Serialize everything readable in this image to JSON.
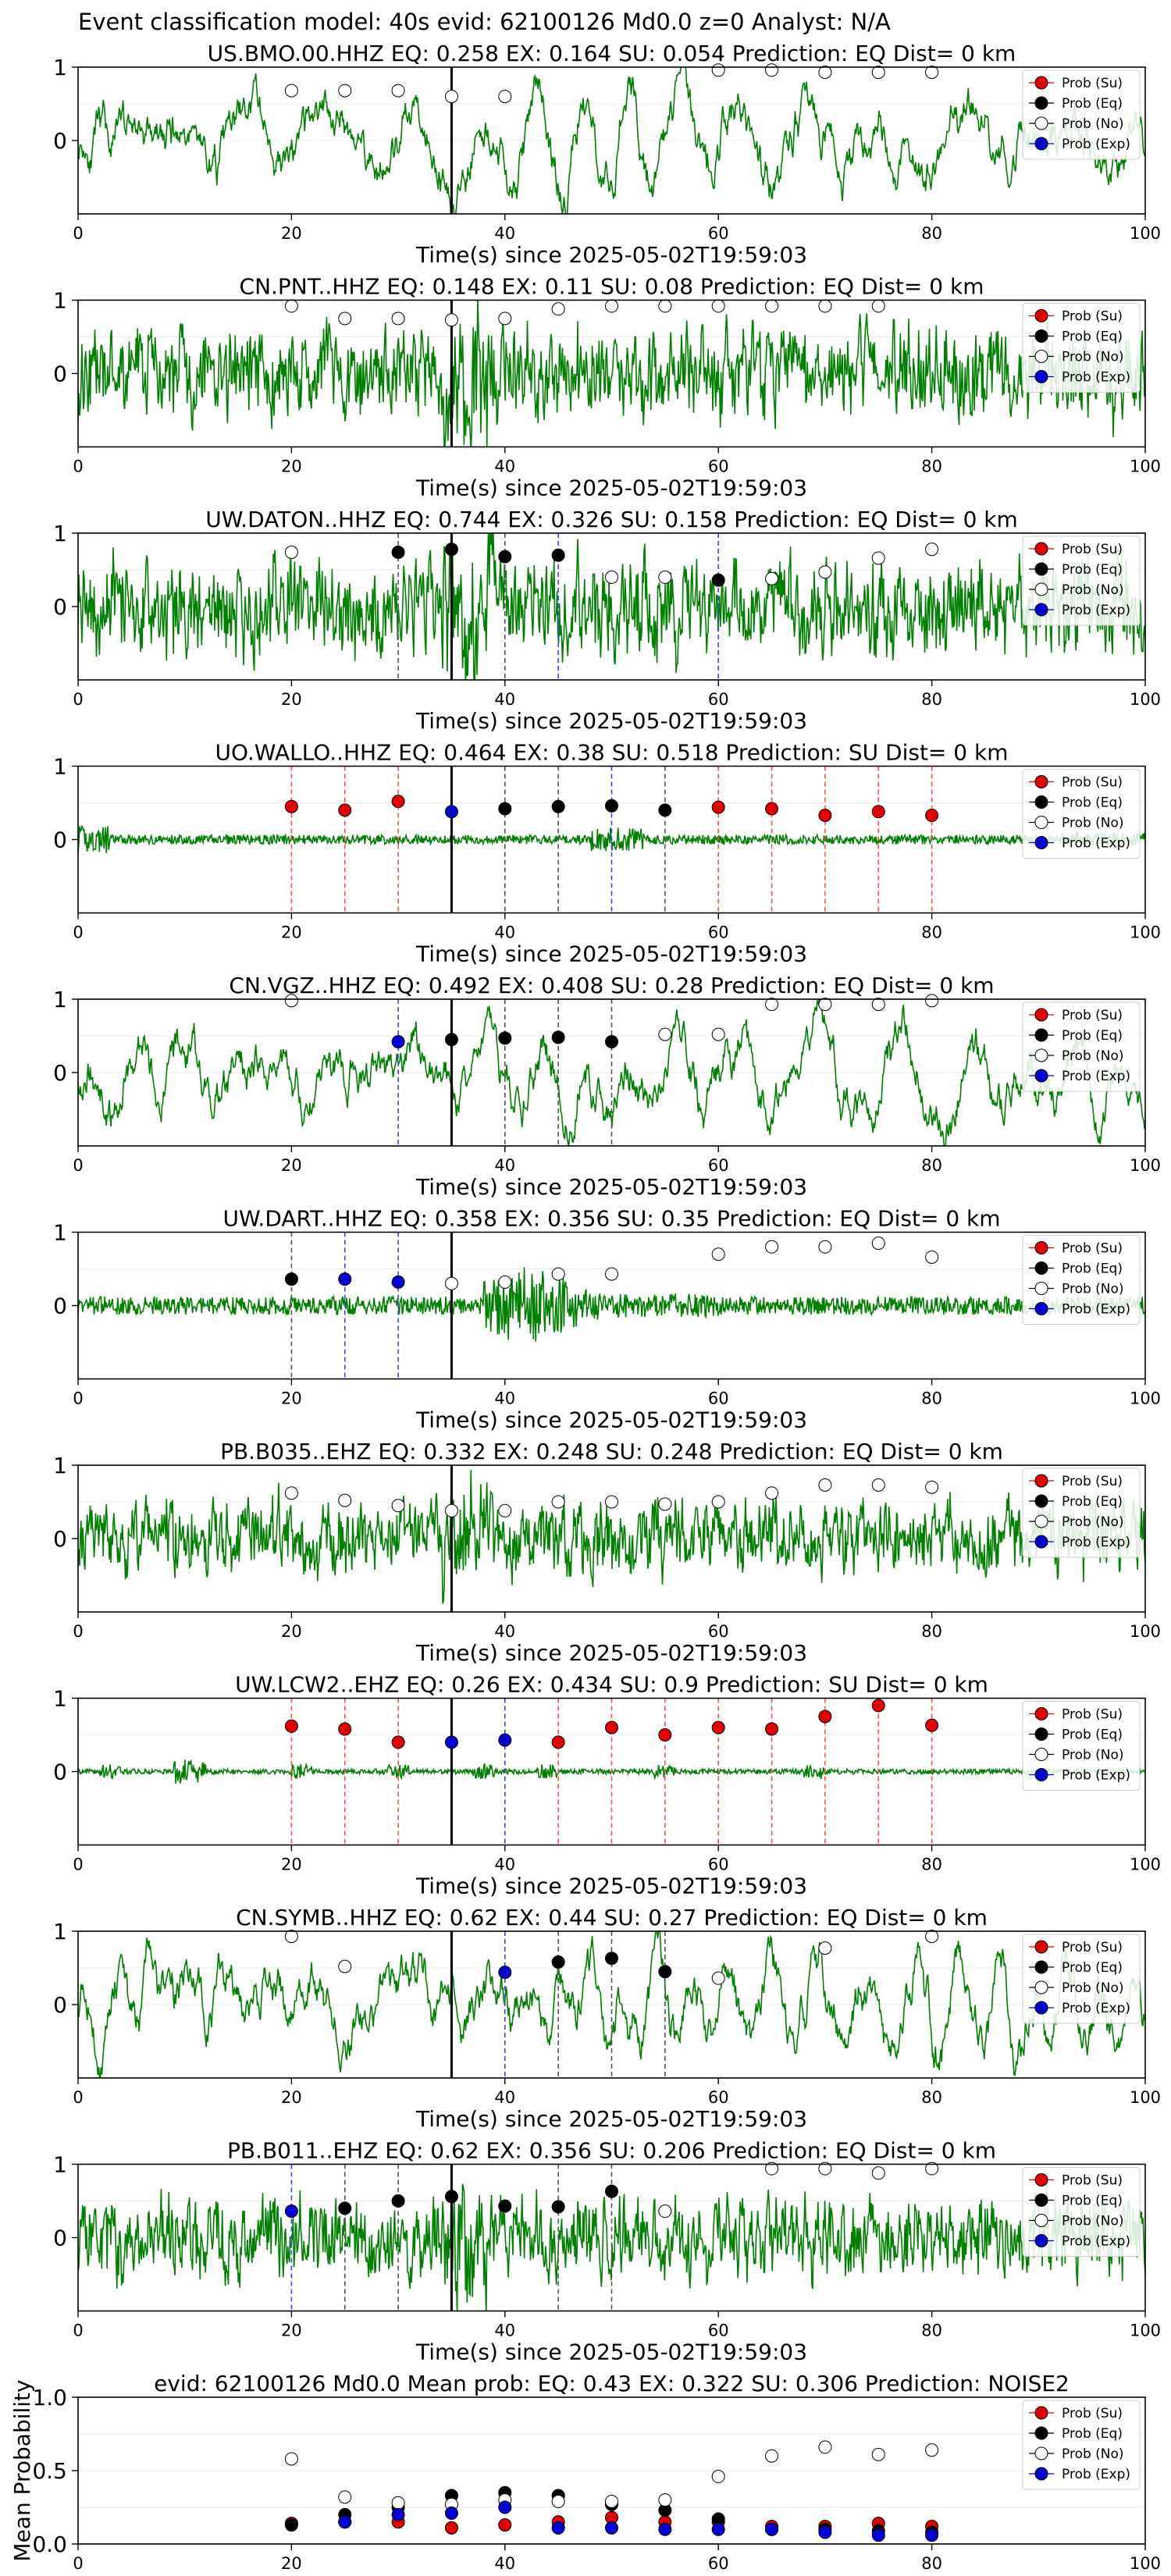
{
  "suptitle": "Event classification model: 40s evid: 62100126 Md0.0 z=0 Analyst: N/A",
  "xlabel": "Time(s) since 2025-05-02T19:59:03",
  "legend": [
    "Prob (Su)",
    "Prob (Eq)",
    "Prob (No)",
    "Prob (Exp)"
  ],
  "colors": {
    "su": "#e00000",
    "eq": "#000000",
    "no": "#ffffff",
    "exp": "#0000d0",
    "trace": "#008000"
  },
  "chart_data": [
    {
      "type": "line",
      "title": "US.BMO.00.HHZ   EQ: 0.258  EX: 0.164  SU: 0.054   Prediction: EQ    Dist= 0 km",
      "style": "lowfreq",
      "amp": 0.55,
      "seed": 11,
      "xlim": [
        0,
        100
      ],
      "ylim": [
        -1,
        1
      ],
      "yticks": [
        0,
        1
      ],
      "xticks": [
        0,
        20,
        40,
        60,
        80,
        100
      ],
      "pts": [
        [
          20,
          0.68,
          "no"
        ],
        [
          25,
          0.68,
          "no"
        ],
        [
          30,
          0.68,
          "no"
        ],
        [
          35,
          0.6,
          "no"
        ],
        [
          40,
          0.6,
          "no"
        ],
        [
          60,
          0.96,
          "no"
        ],
        [
          65,
          0.96,
          "no"
        ],
        [
          70,
          0.93,
          "no"
        ],
        [
          75,
          0.93,
          "no"
        ],
        [
          80,
          0.93,
          "no"
        ]
      ],
      "vlines": []
    },
    {
      "type": "line",
      "title": "CN.PNT..HHZ   EQ: 0.148  EX: 0.11  SU: 0.08   Prediction: EQ    Dist= 0 km",
      "style": "noise",
      "amp": 0.55,
      "seed": 23,
      "xlim": [
        0,
        100
      ],
      "ylim": [
        -1,
        1
      ],
      "yticks": [
        0,
        1
      ],
      "xticks": [
        0,
        20,
        40,
        60,
        80,
        100
      ],
      "pts": [
        [
          20,
          0.92,
          "no"
        ],
        [
          25,
          0.75,
          "no"
        ],
        [
          30,
          0.75,
          "no"
        ],
        [
          35,
          0.73,
          "no"
        ],
        [
          40,
          0.75,
          "no"
        ],
        [
          45,
          0.88,
          "no"
        ],
        [
          50,
          0.92,
          "no"
        ],
        [
          55,
          0.92,
          "no"
        ],
        [
          60,
          0.92,
          "no"
        ],
        [
          65,
          0.92,
          "no"
        ],
        [
          70,
          0.92,
          "no"
        ],
        [
          75,
          0.92,
          "no"
        ]
      ],
      "vlines": []
    },
    {
      "type": "line",
      "title": "UW.DATON..HHZ   EQ: 0.744  EX: 0.326  SU: 0.158   Prediction: EQ    Dist= 0 km",
      "style": "noise",
      "amp": 0.6,
      "seed": 37,
      "xlim": [
        0,
        100
      ],
      "ylim": [
        -1,
        1
      ],
      "yticks": [
        0,
        1
      ],
      "xticks": [
        0,
        20,
        40,
        60,
        80,
        100
      ],
      "pts": [
        [
          20,
          0.74,
          "no"
        ],
        [
          30,
          0.74,
          "eq"
        ],
        [
          35,
          0.78,
          "eq"
        ],
        [
          40,
          0.68,
          "eq"
        ],
        [
          45,
          0.7,
          "eq"
        ],
        [
          50,
          0.4,
          "no"
        ],
        [
          55,
          0.4,
          "no"
        ],
        [
          60,
          0.36,
          "eq"
        ],
        [
          65,
          0.38,
          "no"
        ],
        [
          70,
          0.47,
          "no"
        ],
        [
          75,
          0.66,
          "no"
        ],
        [
          80,
          0.78,
          "no"
        ]
      ],
      "vlines": [
        [
          30,
          "eq"
        ],
        [
          40,
          "eq"
        ],
        [
          45,
          "exp"
        ],
        [
          60,
          "exp"
        ]
      ]
    },
    {
      "type": "line",
      "title": "UO.WALLO..HHZ   EQ: 0.464  EX: 0.38  SU: 0.518   Prediction: SU    Dist= 0 km",
      "style": "quiet",
      "amp": 0.2,
      "seed": 41,
      "xlim": [
        0,
        100
      ],
      "ylim": [
        -1,
        1
      ],
      "yticks": [
        0,
        1
      ],
      "xticks": [
        0,
        20,
        40,
        60,
        80,
        100
      ],
      "pts": [
        [
          20,
          0.45,
          "su"
        ],
        [
          25,
          0.4,
          "su"
        ],
        [
          30,
          0.52,
          "su"
        ],
        [
          35,
          0.38,
          "exp"
        ],
        [
          40,
          0.42,
          "eq"
        ],
        [
          45,
          0.45,
          "eq"
        ],
        [
          50,
          0.46,
          "eq"
        ],
        [
          55,
          0.4,
          "eq"
        ],
        [
          60,
          0.44,
          "su"
        ],
        [
          65,
          0.42,
          "su"
        ],
        [
          70,
          0.33,
          "su"
        ],
        [
          75,
          0.38,
          "su"
        ],
        [
          80,
          0.33,
          "su"
        ]
      ],
      "vlines": [
        [
          20,
          "su"
        ],
        [
          25,
          "su"
        ],
        [
          30,
          "su"
        ],
        [
          40,
          "eq"
        ],
        [
          45,
          "eq"
        ],
        [
          50,
          "exp"
        ],
        [
          55,
          "eq"
        ],
        [
          60,
          "su"
        ],
        [
          65,
          "su"
        ],
        [
          70,
          "su"
        ],
        [
          75,
          "su"
        ],
        [
          80,
          "su"
        ]
      ]
    },
    {
      "type": "line",
      "title": "CN.VGZ..HHZ   EQ: 0.492  EX: 0.408  SU: 0.28   Prediction: EQ    Dist= 0 km",
      "style": "lowfreq",
      "amp": 0.6,
      "seed": 53,
      "xlim": [
        0,
        100
      ],
      "ylim": [
        -1,
        1
      ],
      "yticks": [
        0,
        1
      ],
      "xticks": [
        0,
        20,
        40,
        60,
        80,
        100
      ],
      "pts": [
        [
          20,
          0.98,
          "no"
        ],
        [
          30,
          0.42,
          "exp"
        ],
        [
          35,
          0.45,
          "eq"
        ],
        [
          40,
          0.47,
          "eq"
        ],
        [
          45,
          0.48,
          "eq"
        ],
        [
          50,
          0.42,
          "eq"
        ],
        [
          55,
          0.52,
          "no"
        ],
        [
          60,
          0.52,
          "no"
        ],
        [
          65,
          0.93,
          "no"
        ],
        [
          70,
          0.93,
          "no"
        ],
        [
          75,
          0.93,
          "no"
        ],
        [
          80,
          0.98,
          "no"
        ]
      ],
      "vlines": [
        [
          30,
          "exp"
        ],
        [
          40,
          "eq"
        ],
        [
          45,
          "eq"
        ],
        [
          50,
          "eq"
        ]
      ]
    },
    {
      "type": "line",
      "title": "UW.DART..HHZ   EQ: 0.358  EX: 0.356  SU: 0.35   Prediction: EQ    Dist= 0 km",
      "style": "burst",
      "amp": 0.25,
      "seed": 67,
      "xlim": [
        0,
        100
      ],
      "ylim": [
        -1,
        1
      ],
      "yticks": [
        0,
        1
      ],
      "xticks": [
        0,
        20,
        40,
        60,
        80,
        100
      ],
      "pts": [
        [
          20,
          0.36,
          "eq"
        ],
        [
          25,
          0.36,
          "exp"
        ],
        [
          30,
          0.32,
          "exp"
        ],
        [
          35,
          0.3,
          "no"
        ],
        [
          40,
          0.32,
          "no"
        ],
        [
          45,
          0.43,
          "no"
        ],
        [
          50,
          0.43,
          "no"
        ],
        [
          60,
          0.7,
          "no"
        ],
        [
          65,
          0.8,
          "no"
        ],
        [
          70,
          0.8,
          "no"
        ],
        [
          75,
          0.85,
          "no"
        ],
        [
          80,
          0.66,
          "no"
        ]
      ],
      "vlines": [
        [
          20,
          "eq"
        ],
        [
          25,
          "exp"
        ],
        [
          30,
          "exp"
        ]
      ]
    },
    {
      "type": "line",
      "title": "PB.B035..EHZ   EQ: 0.332  EX: 0.248  SU: 0.248   Prediction: EQ    Dist= 0 km",
      "style": "noise",
      "amp": 0.45,
      "seed": 79,
      "xlim": [
        0,
        100
      ],
      "ylim": [
        -1,
        1
      ],
      "yticks": [
        0,
        1
      ],
      "xticks": [
        0,
        20,
        40,
        60,
        80,
        100
      ],
      "pts": [
        [
          20,
          0.62,
          "no"
        ],
        [
          25,
          0.52,
          "no"
        ],
        [
          30,
          0.45,
          "no"
        ],
        [
          35,
          0.38,
          "no"
        ],
        [
          40,
          0.38,
          "no"
        ],
        [
          45,
          0.5,
          "no"
        ],
        [
          50,
          0.5,
          "no"
        ],
        [
          55,
          0.47,
          "no"
        ],
        [
          60,
          0.5,
          "no"
        ],
        [
          65,
          0.62,
          "no"
        ],
        [
          70,
          0.73,
          "no"
        ],
        [
          75,
          0.73,
          "no"
        ],
        [
          80,
          0.7,
          "no"
        ]
      ],
      "vlines": []
    },
    {
      "type": "line",
      "title": "UW.LCW2..EHZ   EQ: 0.26  EX: 0.434  SU: 0.9   Prediction: SU    Dist= 0 km",
      "style": "quiet2",
      "amp": 0.15,
      "seed": 83,
      "xlim": [
        0,
        100
      ],
      "ylim": [
        -1,
        1
      ],
      "yticks": [
        0,
        1
      ],
      "xticks": [
        0,
        20,
        40,
        60,
        80,
        100
      ],
      "pts": [
        [
          20,
          0.62,
          "su"
        ],
        [
          25,
          0.58,
          "su"
        ],
        [
          30,
          0.4,
          "su"
        ],
        [
          35,
          0.4,
          "exp"
        ],
        [
          40,
          0.43,
          "exp"
        ],
        [
          45,
          0.4,
          "su"
        ],
        [
          50,
          0.6,
          "su"
        ],
        [
          55,
          0.5,
          "su"
        ],
        [
          60,
          0.6,
          "su"
        ],
        [
          65,
          0.58,
          "su"
        ],
        [
          70,
          0.75,
          "su"
        ],
        [
          75,
          0.9,
          "su"
        ],
        [
          80,
          0.63,
          "su"
        ]
      ],
      "vlines": [
        [
          20,
          "su"
        ],
        [
          25,
          "su"
        ],
        [
          30,
          "su"
        ],
        [
          40,
          "exp"
        ],
        [
          45,
          "su"
        ],
        [
          50,
          "su"
        ],
        [
          55,
          "su"
        ],
        [
          60,
          "su"
        ],
        [
          65,
          "su"
        ],
        [
          70,
          "su"
        ],
        [
          75,
          "su"
        ],
        [
          80,
          "su"
        ]
      ]
    },
    {
      "type": "line",
      "title": "CN.SYMB..HHZ   EQ: 0.62  EX: 0.44  SU: 0.27   Prediction: EQ    Dist= 0 km",
      "style": "lowfreq2",
      "amp": 0.75,
      "seed": 97,
      "xlim": [
        0,
        100
      ],
      "ylim": [
        -1,
        1
      ],
      "yticks": [
        0,
        1
      ],
      "xticks": [
        0,
        20,
        40,
        60,
        80,
        100
      ],
      "pts": [
        [
          20,
          0.93,
          "no"
        ],
        [
          25,
          0.52,
          "no"
        ],
        [
          40,
          0.44,
          "exp"
        ],
        [
          45,
          0.58,
          "eq"
        ],
        [
          50,
          0.63,
          "eq"
        ],
        [
          55,
          0.45,
          "eq"
        ],
        [
          60,
          0.36,
          "no"
        ],
        [
          70,
          0.77,
          "no"
        ],
        [
          80,
          0.93,
          "no"
        ]
      ],
      "vlines": [
        [
          40,
          "exp"
        ],
        [
          45,
          "eq"
        ],
        [
          50,
          "eq"
        ],
        [
          55,
          "eq"
        ]
      ]
    },
    {
      "type": "line",
      "title": "PB.B011..EHZ   EQ: 0.62  EX: 0.356  SU: 0.206   Prediction: EQ    Dist= 0 km",
      "style": "noise",
      "amp": 0.5,
      "seed": 101,
      "xlim": [
        0,
        100
      ],
      "ylim": [
        -1,
        1
      ],
      "yticks": [
        0,
        1
      ],
      "xticks": [
        0,
        20,
        40,
        60,
        80,
        100
      ],
      "pts": [
        [
          20,
          0.36,
          "exp"
        ],
        [
          25,
          0.4,
          "eq"
        ],
        [
          30,
          0.5,
          "eq"
        ],
        [
          35,
          0.56,
          "eq"
        ],
        [
          40,
          0.43,
          "eq"
        ],
        [
          45,
          0.42,
          "eq"
        ],
        [
          50,
          0.63,
          "eq"
        ],
        [
          55,
          0.36,
          "no"
        ],
        [
          65,
          0.94,
          "no"
        ],
        [
          70,
          0.94,
          "no"
        ],
        [
          75,
          0.88,
          "no"
        ],
        [
          80,
          0.94,
          "no"
        ]
      ],
      "vlines": [
        [
          20,
          "exp"
        ],
        [
          25,
          "eq"
        ],
        [
          30,
          "eq"
        ],
        [
          45,
          "eq"
        ],
        [
          50,
          "eq"
        ]
      ]
    },
    {
      "type": "scatter",
      "title": "evid: 62100126  Md0.0   Mean prob:   EQ: 0.43  EX: 0.322  SU: 0.306   Prediction: NOISE2",
      "ylabel": "Mean Probability",
      "xlim": [
        0,
        100
      ],
      "ylim": [
        0,
        1
      ],
      "yticks": [
        0,
        0.5,
        1
      ],
      "xticks": [
        0,
        20,
        40,
        60,
        80,
        100
      ],
      "series": [
        {
          "name": "Prob (Su)",
          "key": "su",
          "x": [
            20,
            25,
            30,
            35,
            40,
            45,
            50,
            55,
            60,
            65,
            70,
            75,
            80
          ],
          "y": [
            0.14,
            0.15,
            0.15,
            0.11,
            0.13,
            0.15,
            0.18,
            0.15,
            0.15,
            0.12,
            0.12,
            0.14,
            0.12
          ]
        },
        {
          "name": "Prob (Eq)",
          "key": "eq",
          "x": [
            20,
            25,
            30,
            35,
            40,
            45,
            50,
            55,
            60,
            65,
            70,
            75,
            80
          ],
          "y": [
            0.13,
            0.2,
            0.25,
            0.33,
            0.35,
            0.33,
            0.27,
            0.23,
            0.17,
            0.1,
            0.1,
            0.09,
            0.08
          ]
        },
        {
          "name": "Prob (No)",
          "key": "no",
          "x": [
            20,
            25,
            30,
            35,
            40,
            45,
            50,
            55,
            60,
            65,
            70,
            75,
            80
          ],
          "y": [
            0.58,
            0.32,
            0.28,
            0.27,
            0.3,
            0.29,
            0.29,
            0.3,
            0.46,
            0.6,
            0.66,
            0.61,
            0.64
          ]
        },
        {
          "name": "Prob (Exp)",
          "key": "exp",
          "x": [
            25,
            30,
            35,
            40,
            45,
            50,
            55,
            60,
            65,
            70,
            75,
            80
          ],
          "y": [
            0.15,
            0.2,
            0.21,
            0.25,
            0.11,
            0.11,
            0.1,
            0.1,
            0.1,
            0.08,
            0.06,
            0.06
          ]
        }
      ]
    }
  ]
}
